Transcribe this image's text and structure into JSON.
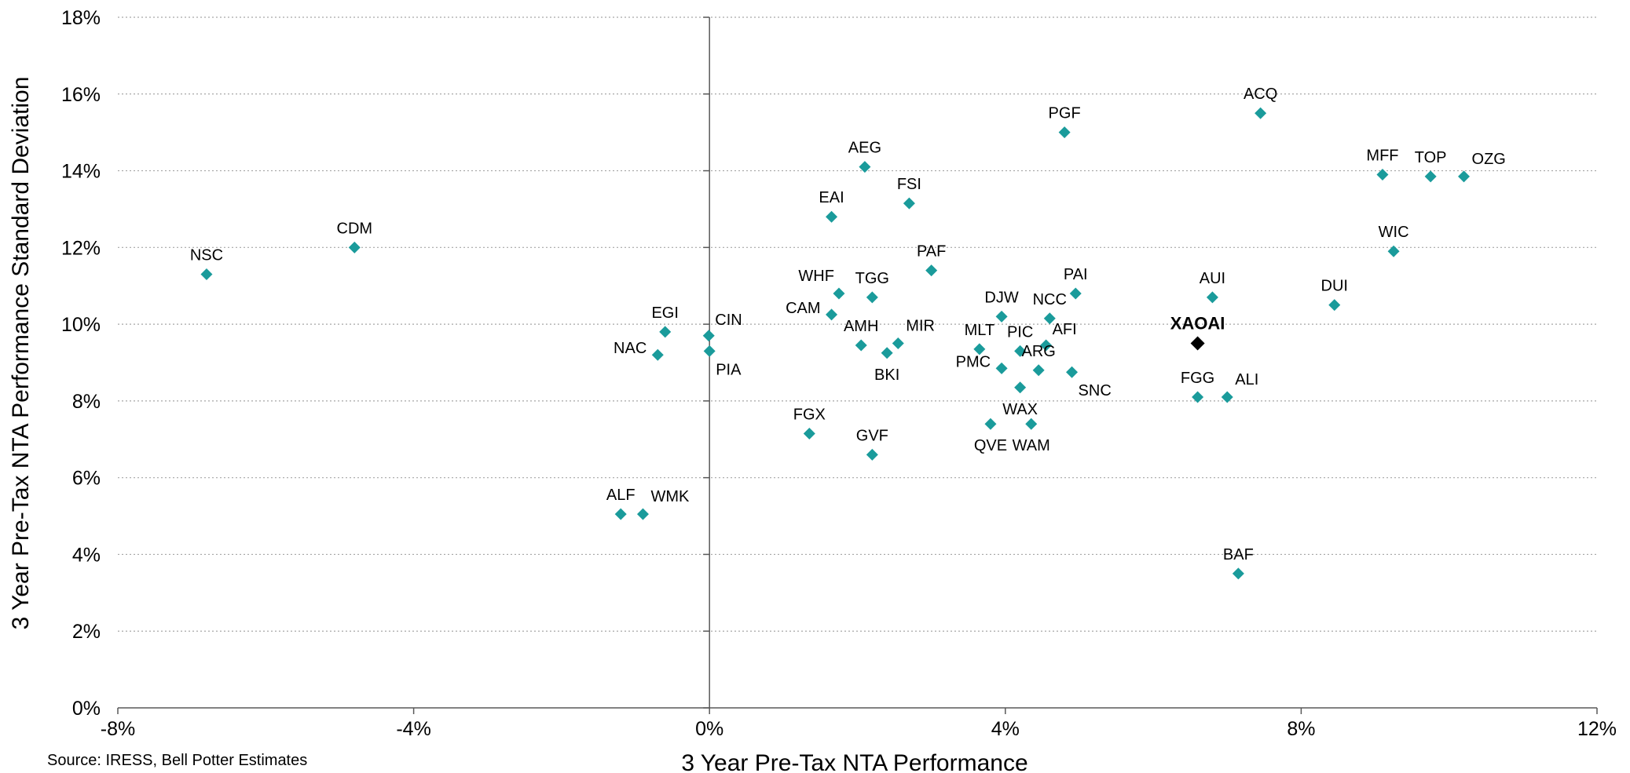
{
  "chart_data": {
    "type": "scatter",
    "title": "",
    "xlabel": "3 Year Pre-Tax NTA Performance",
    "ylabel": "3 Year Pre-Tax NTA Performance Standard Deviation",
    "xlim": [
      -0.08,
      0.12
    ],
    "ylim": [
      0,
      0.18
    ],
    "x_ticks": [
      -0.08,
      -0.04,
      0,
      0.04,
      0.08,
      0.12
    ],
    "x_tick_labels": [
      "-8%",
      "-4%",
      "0%",
      "4%",
      "8%",
      "12%"
    ],
    "y_ticks": [
      0,
      0.02,
      0.04,
      0.06,
      0.08,
      0.1,
      0.12,
      0.14,
      0.16,
      0.18
    ],
    "y_tick_labels": [
      "0%",
      "2%",
      "4%",
      "6%",
      "8%",
      "10%",
      "12%",
      "14%",
      "16%",
      "18%"
    ],
    "grid": "horizontal dotted",
    "colors": {
      "marker": "#1a9b9b",
      "highlight": "#000000",
      "grid": "#a6a6a6",
      "axis": "#595959"
    },
    "points": [
      {
        "label": "NSC",
        "x": -0.068,
        "y": 0.113,
        "pos": "above"
      },
      {
        "label": "CDM",
        "x": -0.048,
        "y": 0.12,
        "pos": "above"
      },
      {
        "label": "EGI",
        "x": -0.006,
        "y": 0.098,
        "pos": "above"
      },
      {
        "label": "NAC",
        "x": -0.007,
        "y": 0.092,
        "pos": "left"
      },
      {
        "label": "CIN",
        "x": -0.0001,
        "y": 0.097,
        "pos": "right-up"
      },
      {
        "label": "PIA",
        "x": 0.0,
        "y": 0.093,
        "pos": "right-down"
      },
      {
        "label": "ALF",
        "x": -0.012,
        "y": 0.0505,
        "pos": "above"
      },
      {
        "label": "WMK",
        "x": -0.009,
        "y": 0.0505,
        "pos": "above-right"
      },
      {
        "label": "FGX",
        "x": 0.0135,
        "y": 0.0715,
        "pos": "above"
      },
      {
        "label": "GVF",
        "x": 0.022,
        "y": 0.066,
        "pos": "above"
      },
      {
        "label": "AEG",
        "x": 0.021,
        "y": 0.141,
        "pos": "above"
      },
      {
        "label": "EAI",
        "x": 0.0165,
        "y": 0.128,
        "pos": "above"
      },
      {
        "label": "FSI",
        "x": 0.027,
        "y": 0.1315,
        "pos": "above"
      },
      {
        "label": "PAF",
        "x": 0.03,
        "y": 0.114,
        "pos": "above"
      },
      {
        "label": "WHF",
        "x": 0.0175,
        "y": 0.108,
        "pos": "above-left"
      },
      {
        "label": "TGG",
        "x": 0.022,
        "y": 0.107,
        "pos": "above"
      },
      {
        "label": "CAM",
        "x": 0.0165,
        "y": 0.1025,
        "pos": "left"
      },
      {
        "label": "AMH",
        "x": 0.0205,
        "y": 0.0945,
        "pos": "above"
      },
      {
        "label": "MIR",
        "x": 0.0255,
        "y": 0.095,
        "pos": "above-right"
      },
      {
        "label": "BKI",
        "x": 0.024,
        "y": 0.0925,
        "pos": "below"
      },
      {
        "label": "PGF",
        "x": 0.048,
        "y": 0.15,
        "pos": "above"
      },
      {
        "label": "ACQ",
        "x": 0.0745,
        "y": 0.155,
        "pos": "above"
      },
      {
        "label": "DJW",
        "x": 0.0395,
        "y": 0.102,
        "pos": "above"
      },
      {
        "label": "NCC",
        "x": 0.046,
        "y": 0.1015,
        "pos": "above"
      },
      {
        "label": "PAI",
        "x": 0.0495,
        "y": 0.108,
        "pos": "above"
      },
      {
        "label": "MLT",
        "x": 0.0365,
        "y": 0.0935,
        "pos": "above"
      },
      {
        "label": "PIC",
        "x": 0.042,
        "y": 0.093,
        "pos": "above"
      },
      {
        "label": "AFI",
        "x": 0.0455,
        "y": 0.0945,
        "pos": "right-up"
      },
      {
        "label": "ARG",
        "x": 0.0445,
        "y": 0.088,
        "pos": "above"
      },
      {
        "label": "PMC",
        "x": 0.0395,
        "y": 0.0885,
        "pos": "left"
      },
      {
        "label": "SNC",
        "x": 0.049,
        "y": 0.0875,
        "pos": "right-down"
      },
      {
        "label": "WAX",
        "x": 0.042,
        "y": 0.0835,
        "pos": "below"
      },
      {
        "label": "QVE",
        "x": 0.038,
        "y": 0.074,
        "pos": "below"
      },
      {
        "label": "WAM",
        "x": 0.0435,
        "y": 0.074,
        "pos": "below"
      },
      {
        "label": "AUI",
        "x": 0.068,
        "y": 0.107,
        "pos": "above"
      },
      {
        "label": "FGG",
        "x": 0.066,
        "y": 0.081,
        "pos": "above"
      },
      {
        "label": "ALI",
        "x": 0.07,
        "y": 0.081,
        "pos": "above-right"
      },
      {
        "label": "BAF",
        "x": 0.0715,
        "y": 0.035,
        "pos": "above"
      },
      {
        "label": "MFF",
        "x": 0.091,
        "y": 0.139,
        "pos": "above"
      },
      {
        "label": "TOP",
        "x": 0.0975,
        "y": 0.1385,
        "pos": "above"
      },
      {
        "label": "OZG",
        "x": 0.102,
        "y": 0.1385,
        "pos": "above-right"
      },
      {
        "label": "WIC",
        "x": 0.0925,
        "y": 0.119,
        "pos": "above"
      },
      {
        "label": "DUI",
        "x": 0.0845,
        "y": 0.105,
        "pos": "above"
      },
      {
        "label": "XAOAI",
        "x": 0.066,
        "y": 0.095,
        "pos": "above",
        "highlight": true
      }
    ],
    "source": "Source: IRESS, Bell Potter Estimates"
  }
}
